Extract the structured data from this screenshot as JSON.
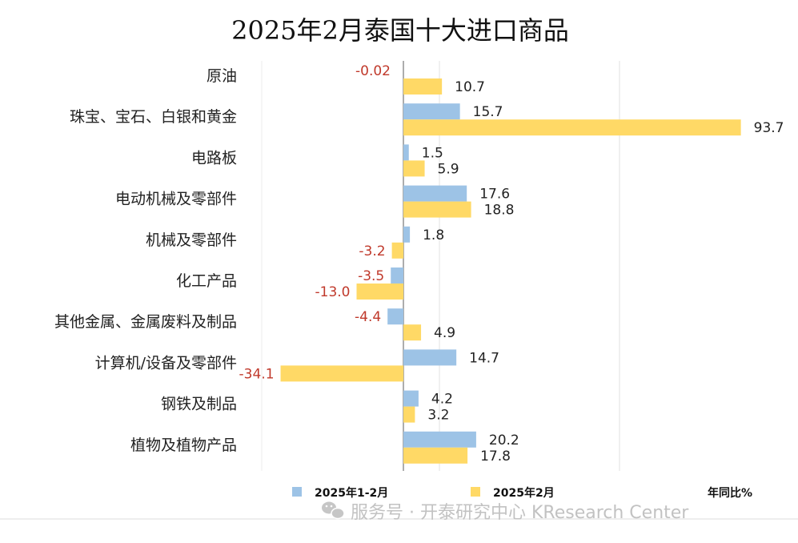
{
  "chart_data": {
    "type": "bar",
    "orientation": "horizontal",
    "title": "2025年2月泰国十大进口商品",
    "categories": [
      "原油",
      "珠宝、宝石、白银和黄金",
      "电路板",
      "电动机械及零部件",
      "机械及零部件",
      "化工产品",
      "其他金属、金属废料及制品",
      "计算机/设备及零部件",
      "钢铁及制品",
      "植物及植物产品"
    ],
    "series": [
      {
        "name": "2025年1-2月",
        "color": "#9dc3e6",
        "values": [
          null,
          15.7,
          1.5,
          17.6,
          1.8,
          -3.5,
          -4.4,
          14.7,
          4.2,
          20.2
        ],
        "labels": [
          "",
          "15.7",
          "1.5",
          "17.6",
          "1.8",
          "-3.5",
          "-4.4",
          "14.7",
          "4.2",
          "20.2"
        ]
      },
      {
        "name": "2025年2月",
        "color": "#ffd966",
        "values": [
          10.7,
          93.7,
          5.9,
          18.8,
          -3.2,
          -13.0,
          4.9,
          -34.1,
          3.2,
          17.8
        ],
        "labels": [
          "10.7",
          "93.7",
          "5.9",
          "18.8",
          "-3.2",
          "-13.0",
          "4.9",
          "-34.1",
          "3.2",
          "17.8"
        ]
      }
    ],
    "annotations": [
      {
        "text": "-0.02",
        "category": "原油",
        "series": 0
      }
    ],
    "unit_label": "年同比%",
    "grid": true,
    "legend_position": "bottom",
    "negative_label_color": "#c0392b",
    "positive_label_color": "#222222"
  },
  "watermark": {
    "text": "服务号 · 开泰研究中心 KResearch Center"
  }
}
